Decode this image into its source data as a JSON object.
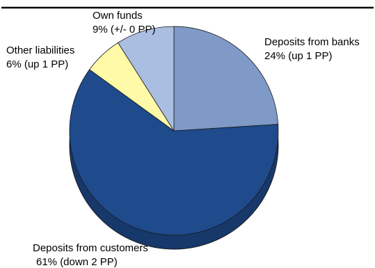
{
  "chart_data": {
    "type": "pie",
    "style": "3d",
    "start": "12 o'clock, clockwise",
    "slices": [
      {
        "label": "Deposits from banks",
        "value": 24,
        "value_text": "24% (up 1 PP)",
        "color": "#7f9ac7"
      },
      {
        "label": "Deposits from customers",
        "value": 61,
        "value_text": "61% (down 2 PP)",
        "color": "#1f4a8c"
      },
      {
        "label": "Other liabilities",
        "value": 6,
        "value_text": "6% (up 1 PP)",
        "color": "#fffaa8"
      },
      {
        "label": "Own funds",
        "value": 9,
        "value_text": "9% (+/- 0 PP)",
        "color": "#a9bee0"
      }
    ],
    "shadow_color": "#17386a",
    "edge_color": "#1a1a1a"
  },
  "top_rule_color": "#000000"
}
